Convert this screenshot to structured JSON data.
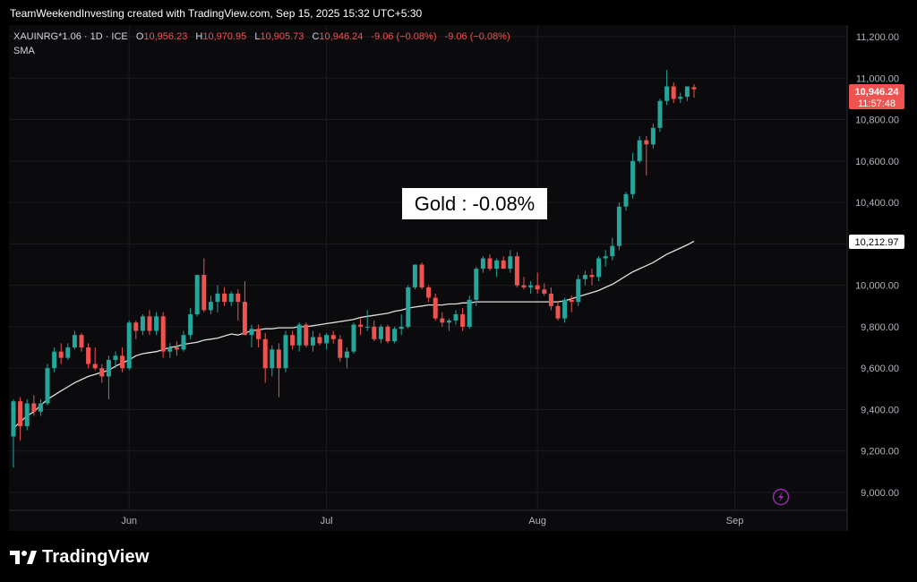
{
  "header": {
    "credit": "TeamWeekendInvesting created with TradingView.com, Sep 15, 2025 15:32 UTC+5:30"
  },
  "legend": {
    "symbol": "XAUINRG*1.06 · 1D · ICE",
    "open_label": "O",
    "open": "10,956.23",
    "high_label": "H",
    "high": "10,970.95",
    "low_label": "L",
    "low": "10,905.73",
    "close_label": "C",
    "close": "10,946.24",
    "change": "-9.06 (−0.08%)",
    "change2": "-9.06 (−0.08%)",
    "indicator": "SMA"
  },
  "annotation": {
    "text": "Gold : -0.08%"
  },
  "price_tag": {
    "price": "10,946.24",
    "countdown": "11:57:48"
  },
  "sma_tag": {
    "value": "10,212.97"
  },
  "footer": {
    "brand": "TradingView"
  },
  "colors": {
    "up": "#26a69a",
    "down": "#ef5350",
    "sma": "#e0e0e0",
    "grid": "#1c1c1f",
    "text": "#b2b5be",
    "background": "#000000",
    "pane": "#0b0b0d",
    "accent": "#9c27b0"
  },
  "chart_data": {
    "type": "candlestick",
    "title": "XAUINRG*1.06 · 1D · ICE",
    "yticks": [
      9000,
      9200,
      9400,
      9600,
      9800,
      10000,
      10200,
      10400,
      10600,
      10800,
      11000,
      11200
    ],
    "ytick_labels": [
      "9,000.00",
      "9,200.00",
      "9,400.00",
      "9,600.00",
      "9,800.00",
      "10,000.00",
      "10,200.00",
      "10,400.00",
      "10,600.00",
      "10,800.00",
      "11,000.00",
      "11,200.00"
    ],
    "ylim": [
      8880,
      11280
    ],
    "x_labels": [
      {
        "label": "Jun",
        "index": 17
      },
      {
        "label": "Jul",
        "index": 46
      },
      {
        "label": "Aug",
        "index": 77
      },
      {
        "label": "Sep",
        "index": 106
      }
    ],
    "candles": [
      {
        "o": 9270,
        "h": 9450,
        "l": 9120,
        "c": 9440
      },
      {
        "o": 9440,
        "h": 9460,
        "l": 9250,
        "c": 9320
      },
      {
        "o": 9320,
        "h": 9450,
        "l": 9300,
        "c": 9430
      },
      {
        "o": 9430,
        "h": 9470,
        "l": 9370,
        "c": 9390
      },
      {
        "o": 9390,
        "h": 9450,
        "l": 9370,
        "c": 9430
      },
      {
        "o": 9430,
        "h": 9620,
        "l": 9420,
        "c": 9600
      },
      {
        "o": 9600,
        "h": 9700,
        "l": 9580,
        "c": 9680
      },
      {
        "o": 9680,
        "h": 9720,
        "l": 9620,
        "c": 9650
      },
      {
        "o": 9650,
        "h": 9720,
        "l": 9640,
        "c": 9700
      },
      {
        "o": 9700,
        "h": 9780,
        "l": 9690,
        "c": 9760
      },
      {
        "o": 9760,
        "h": 9770,
        "l": 9680,
        "c": 9700
      },
      {
        "o": 9700,
        "h": 9720,
        "l": 9600,
        "c": 9620
      },
      {
        "o": 9620,
        "h": 9700,
        "l": 9590,
        "c": 9600
      },
      {
        "o": 9600,
        "h": 9620,
        "l": 9530,
        "c": 9560
      },
      {
        "o": 9560,
        "h": 9660,
        "l": 9450,
        "c": 9640
      },
      {
        "o": 9640,
        "h": 9680,
        "l": 9600,
        "c": 9660
      },
      {
        "o": 9660,
        "h": 9700,
        "l": 9580,
        "c": 9600
      },
      {
        "o": 9600,
        "h": 9830,
        "l": 9590,
        "c": 9820
      },
      {
        "o": 9820,
        "h": 9830,
        "l": 9740,
        "c": 9780
      },
      {
        "o": 9780,
        "h": 9860,
        "l": 9760,
        "c": 9850
      },
      {
        "o": 9850,
        "h": 9880,
        "l": 9760,
        "c": 9780
      },
      {
        "o": 9780,
        "h": 9870,
        "l": 9760,
        "c": 9850
      },
      {
        "o": 9850,
        "h": 9870,
        "l": 9650,
        "c": 9680
      },
      {
        "o": 9680,
        "h": 9720,
        "l": 9650,
        "c": 9700
      },
      {
        "o": 9700,
        "h": 9730,
        "l": 9660,
        "c": 9690
      },
      {
        "o": 9690,
        "h": 9780,
        "l": 9680,
        "c": 9760
      },
      {
        "o": 9760,
        "h": 9890,
        "l": 9740,
        "c": 9860
      },
      {
        "o": 9860,
        "h": 10050,
        "l": 9850,
        "c": 10050
      },
      {
        "o": 10050,
        "h": 10130,
        "l": 9870,
        "c": 9880
      },
      {
        "o": 9880,
        "h": 9950,
        "l": 9860,
        "c": 9920
      },
      {
        "o": 9920,
        "h": 10000,
        "l": 9870,
        "c": 9960
      },
      {
        "o": 9960,
        "h": 9990,
        "l": 9900,
        "c": 9920
      },
      {
        "o": 9920,
        "h": 9970,
        "l": 9900,
        "c": 9960
      },
      {
        "o": 9960,
        "h": 9980,
        "l": 9830,
        "c": 9920
      },
      {
        "o": 9920,
        "h": 10020,
        "l": 9760,
        "c": 9760
      },
      {
        "o": 9760,
        "h": 9810,
        "l": 9700,
        "c": 9790
      },
      {
        "o": 9790,
        "h": 9810,
        "l": 9700,
        "c": 9740
      },
      {
        "o": 9740,
        "h": 9770,
        "l": 9530,
        "c": 9600
      },
      {
        "o": 9600,
        "h": 9710,
        "l": 9560,
        "c": 9690
      },
      {
        "o": 9690,
        "h": 9720,
        "l": 9460,
        "c": 9600
      },
      {
        "o": 9600,
        "h": 9780,
        "l": 9580,
        "c": 9760
      },
      {
        "o": 9760,
        "h": 9780,
        "l": 9690,
        "c": 9710
      },
      {
        "o": 9710,
        "h": 9820,
        "l": 9680,
        "c": 9810
      },
      {
        "o": 9810,
        "h": 9820,
        "l": 9700,
        "c": 9710
      },
      {
        "o": 9710,
        "h": 9780,
        "l": 9680,
        "c": 9750
      },
      {
        "o": 9750,
        "h": 9770,
        "l": 9710,
        "c": 9720
      },
      {
        "o": 9720,
        "h": 9770,
        "l": 9690,
        "c": 9760
      },
      {
        "o": 9760,
        "h": 9780,
        "l": 9720,
        "c": 9740
      },
      {
        "o": 9740,
        "h": 9760,
        "l": 9630,
        "c": 9650
      },
      {
        "o": 9650,
        "h": 9700,
        "l": 9600,
        "c": 9680
      },
      {
        "o": 9680,
        "h": 9820,
        "l": 9670,
        "c": 9810
      },
      {
        "o": 9810,
        "h": 9840,
        "l": 9760,
        "c": 9800
      },
      {
        "o": 9800,
        "h": 9880,
        "l": 9780,
        "c": 9800
      },
      {
        "o": 9800,
        "h": 9830,
        "l": 9730,
        "c": 9740
      },
      {
        "o": 9740,
        "h": 9810,
        "l": 9720,
        "c": 9800
      },
      {
        "o": 9800,
        "h": 9810,
        "l": 9720,
        "c": 9730
      },
      {
        "o": 9730,
        "h": 9800,
        "l": 9720,
        "c": 9790
      },
      {
        "o": 9790,
        "h": 9860,
        "l": 9760,
        "c": 9800
      },
      {
        "o": 9800,
        "h": 10000,
        "l": 9790,
        "c": 9990
      },
      {
        "o": 9990,
        "h": 10100,
        "l": 9980,
        "c": 10100
      },
      {
        "o": 10100,
        "h": 10110,
        "l": 9980,
        "c": 9990
      },
      {
        "o": 9990,
        "h": 10000,
        "l": 9920,
        "c": 9940
      },
      {
        "o": 9940,
        "h": 9960,
        "l": 9830,
        "c": 9840
      },
      {
        "o": 9840,
        "h": 9870,
        "l": 9800,
        "c": 9820
      },
      {
        "o": 9820,
        "h": 9840,
        "l": 9780,
        "c": 9830
      },
      {
        "o": 9830,
        "h": 9880,
        "l": 9810,
        "c": 9860
      },
      {
        "o": 9860,
        "h": 9890,
        "l": 9780,
        "c": 9800
      },
      {
        "o": 9800,
        "h": 9950,
        "l": 9790,
        "c": 9930
      },
      {
        "o": 9930,
        "h": 10090,
        "l": 9900,
        "c": 10080
      },
      {
        "o": 10080,
        "h": 10140,
        "l": 10060,
        "c": 10130
      },
      {
        "o": 10130,
        "h": 10150,
        "l": 10070,
        "c": 10080
      },
      {
        "o": 10080,
        "h": 10130,
        "l": 10040,
        "c": 10120
      },
      {
        "o": 10120,
        "h": 10140,
        "l": 10080,
        "c": 10080
      },
      {
        "o": 10080,
        "h": 10170,
        "l": 10060,
        "c": 10140
      },
      {
        "o": 10140,
        "h": 10160,
        "l": 9990,
        "c": 10000
      },
      {
        "o": 10000,
        "h": 10040,
        "l": 9980,
        "c": 9990
      },
      {
        "o": 9990,
        "h": 10020,
        "l": 9960,
        "c": 10000
      },
      {
        "o": 10000,
        "h": 10060,
        "l": 9960,
        "c": 9980
      },
      {
        "o": 9980,
        "h": 10010,
        "l": 9950,
        "c": 9960
      },
      {
        "o": 9960,
        "h": 9990,
        "l": 9880,
        "c": 9900
      },
      {
        "o": 9900,
        "h": 9920,
        "l": 9830,
        "c": 9840
      },
      {
        "o": 9840,
        "h": 9940,
        "l": 9820,
        "c": 9930
      },
      {
        "o": 9930,
        "h": 9950,
        "l": 9870,
        "c": 9920
      },
      {
        "o": 9920,
        "h": 10050,
        "l": 9900,
        "c": 10030
      },
      {
        "o": 10030,
        "h": 10070,
        "l": 10000,
        "c": 10050
      },
      {
        "o": 10050,
        "h": 10080,
        "l": 10000,
        "c": 10040
      },
      {
        "o": 10040,
        "h": 10140,
        "l": 10020,
        "c": 10130
      },
      {
        "o": 10130,
        "h": 10170,
        "l": 10090,
        "c": 10140
      },
      {
        "o": 10140,
        "h": 10230,
        "l": 10120,
        "c": 10190
      },
      {
        "o": 10190,
        "h": 10400,
        "l": 10170,
        "c": 10380
      },
      {
        "o": 10380,
        "h": 10450,
        "l": 10360,
        "c": 10440
      },
      {
        "o": 10440,
        "h": 10640,
        "l": 10420,
        "c": 10600
      },
      {
        "o": 10600,
        "h": 10720,
        "l": 10590,
        "c": 10700
      },
      {
        "o": 10700,
        "h": 10720,
        "l": 10530,
        "c": 10680
      },
      {
        "o": 10680,
        "h": 10780,
        "l": 10660,
        "c": 10760
      },
      {
        "o": 10760,
        "h": 10900,
        "l": 10740,
        "c": 10890
      },
      {
        "o": 10890,
        "h": 11040,
        "l": 10870,
        "c": 10960
      },
      {
        "o": 10960,
        "h": 10980,
        "l": 10880,
        "c": 10900
      },
      {
        "o": 10900,
        "h": 10930,
        "l": 10880,
        "c": 10910
      },
      {
        "o": 10910,
        "h": 10960,
        "l": 10890,
        "c": 10960
      },
      {
        "o": 10956.23,
        "h": 10970.95,
        "l": 10905.73,
        "c": 10946.24
      }
    ],
    "sma": [
      9310,
      9340,
      9370,
      9390,
      9420,
      9450,
      9470,
      9490,
      9510,
      9530,
      9545,
      9560,
      9570,
      9580,
      9590,
      9610,
      9625,
      9640,
      9660,
      9670,
      9675,
      9680,
      9690,
      9700,
      9705,
      9715,
      9720,
      9725,
      9735,
      9740,
      9745,
      9755,
      9765,
      9760,
      9770,
      9780,
      9785,
      9790,
      9790,
      9795,
      9795,
      9795,
      9800,
      9800,
      9805,
      9810,
      9815,
      9820,
      9825,
      9830,
      9835,
      9845,
      9850,
      9855,
      9860,
      9865,
      9875,
      9880,
      9890,
      9895,
      9900,
      9905,
      9905,
      9905,
      9910,
      9910,
      9915,
      9915,
      9920,
      9920,
      9920,
      9920,
      9920,
      9920,
      9920,
      9920,
      9920,
      9920,
      9920,
      9920,
      9920,
      9925,
      9935,
      9945,
      9955,
      9965,
      9975,
      9990,
      10005,
      10025,
      10045,
      10065,
      10080,
      10095,
      10110,
      10130,
      10150,
      10165,
      10180,
      10195,
      10212.97
    ]
  }
}
